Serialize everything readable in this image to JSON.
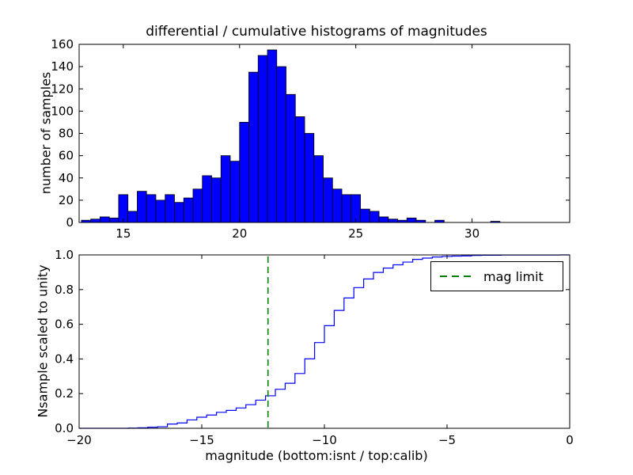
{
  "figure": {
    "background": "#ffffff"
  },
  "chart_data": [
    {
      "type": "bar",
      "subplot": "top",
      "title": "differential / cumulative histograms of magnitudes",
      "ylabel": "number of samples",
      "xlim": [
        13.1,
        34.2
      ],
      "ylim": [
        0,
        160
      ],
      "xticks": [
        15,
        20,
        25,
        30
      ],
      "yticks": [
        0,
        20,
        40,
        60,
        80,
        100,
        120,
        140,
        160
      ],
      "bin_start": 13.2,
      "bin_width": 0.4,
      "values": [
        2,
        3,
        5,
        4,
        25,
        10,
        28,
        25,
        20,
        25,
        18,
        22,
        30,
        42,
        40,
        60,
        55,
        90,
        135,
        150,
        155,
        140,
        115,
        95,
        80,
        60,
        40,
        30,
        25,
        25,
        12,
        10,
        5,
        3,
        2,
        4,
        2,
        0,
        2,
        0,
        0,
        0,
        0,
        0,
        1,
        0
      ],
      "bar_fill": "#0000ff",
      "bar_edge": "#000000",
      "grid": false
    },
    {
      "type": "line",
      "subplot": "bottom",
      "style": "cumulative-step",
      "derived_from": "cumulative sum of top histogram values scaled to unity",
      "ylabel": "Nsample scaled to unity",
      "xlabel": "magnitude (bottom:isnt / top:calib)",
      "xlim": [
        -20,
        0
      ],
      "ylim": [
        0.0,
        1.0
      ],
      "xticks": [
        -20,
        -15,
        -10,
        -5,
        0
      ],
      "ytick_values": [
        0.0,
        0.2,
        0.4,
        0.6,
        0.8,
        1.0
      ],
      "ytick_labels": [
        "0.0",
        "0.2",
        "0.4",
        "0.6",
        "0.8",
        "1.0"
      ],
      "x_offset_from_top": -31.2,
      "line_color": "#0000ff",
      "mag_limit": {
        "x": -12.3,
        "color": "#008000",
        "style": "dashed",
        "label": "mag limit"
      },
      "legend": {
        "entries": [
          "mag limit"
        ],
        "entry_color": "#008000",
        "position": "upper right"
      },
      "grid": false
    }
  ]
}
